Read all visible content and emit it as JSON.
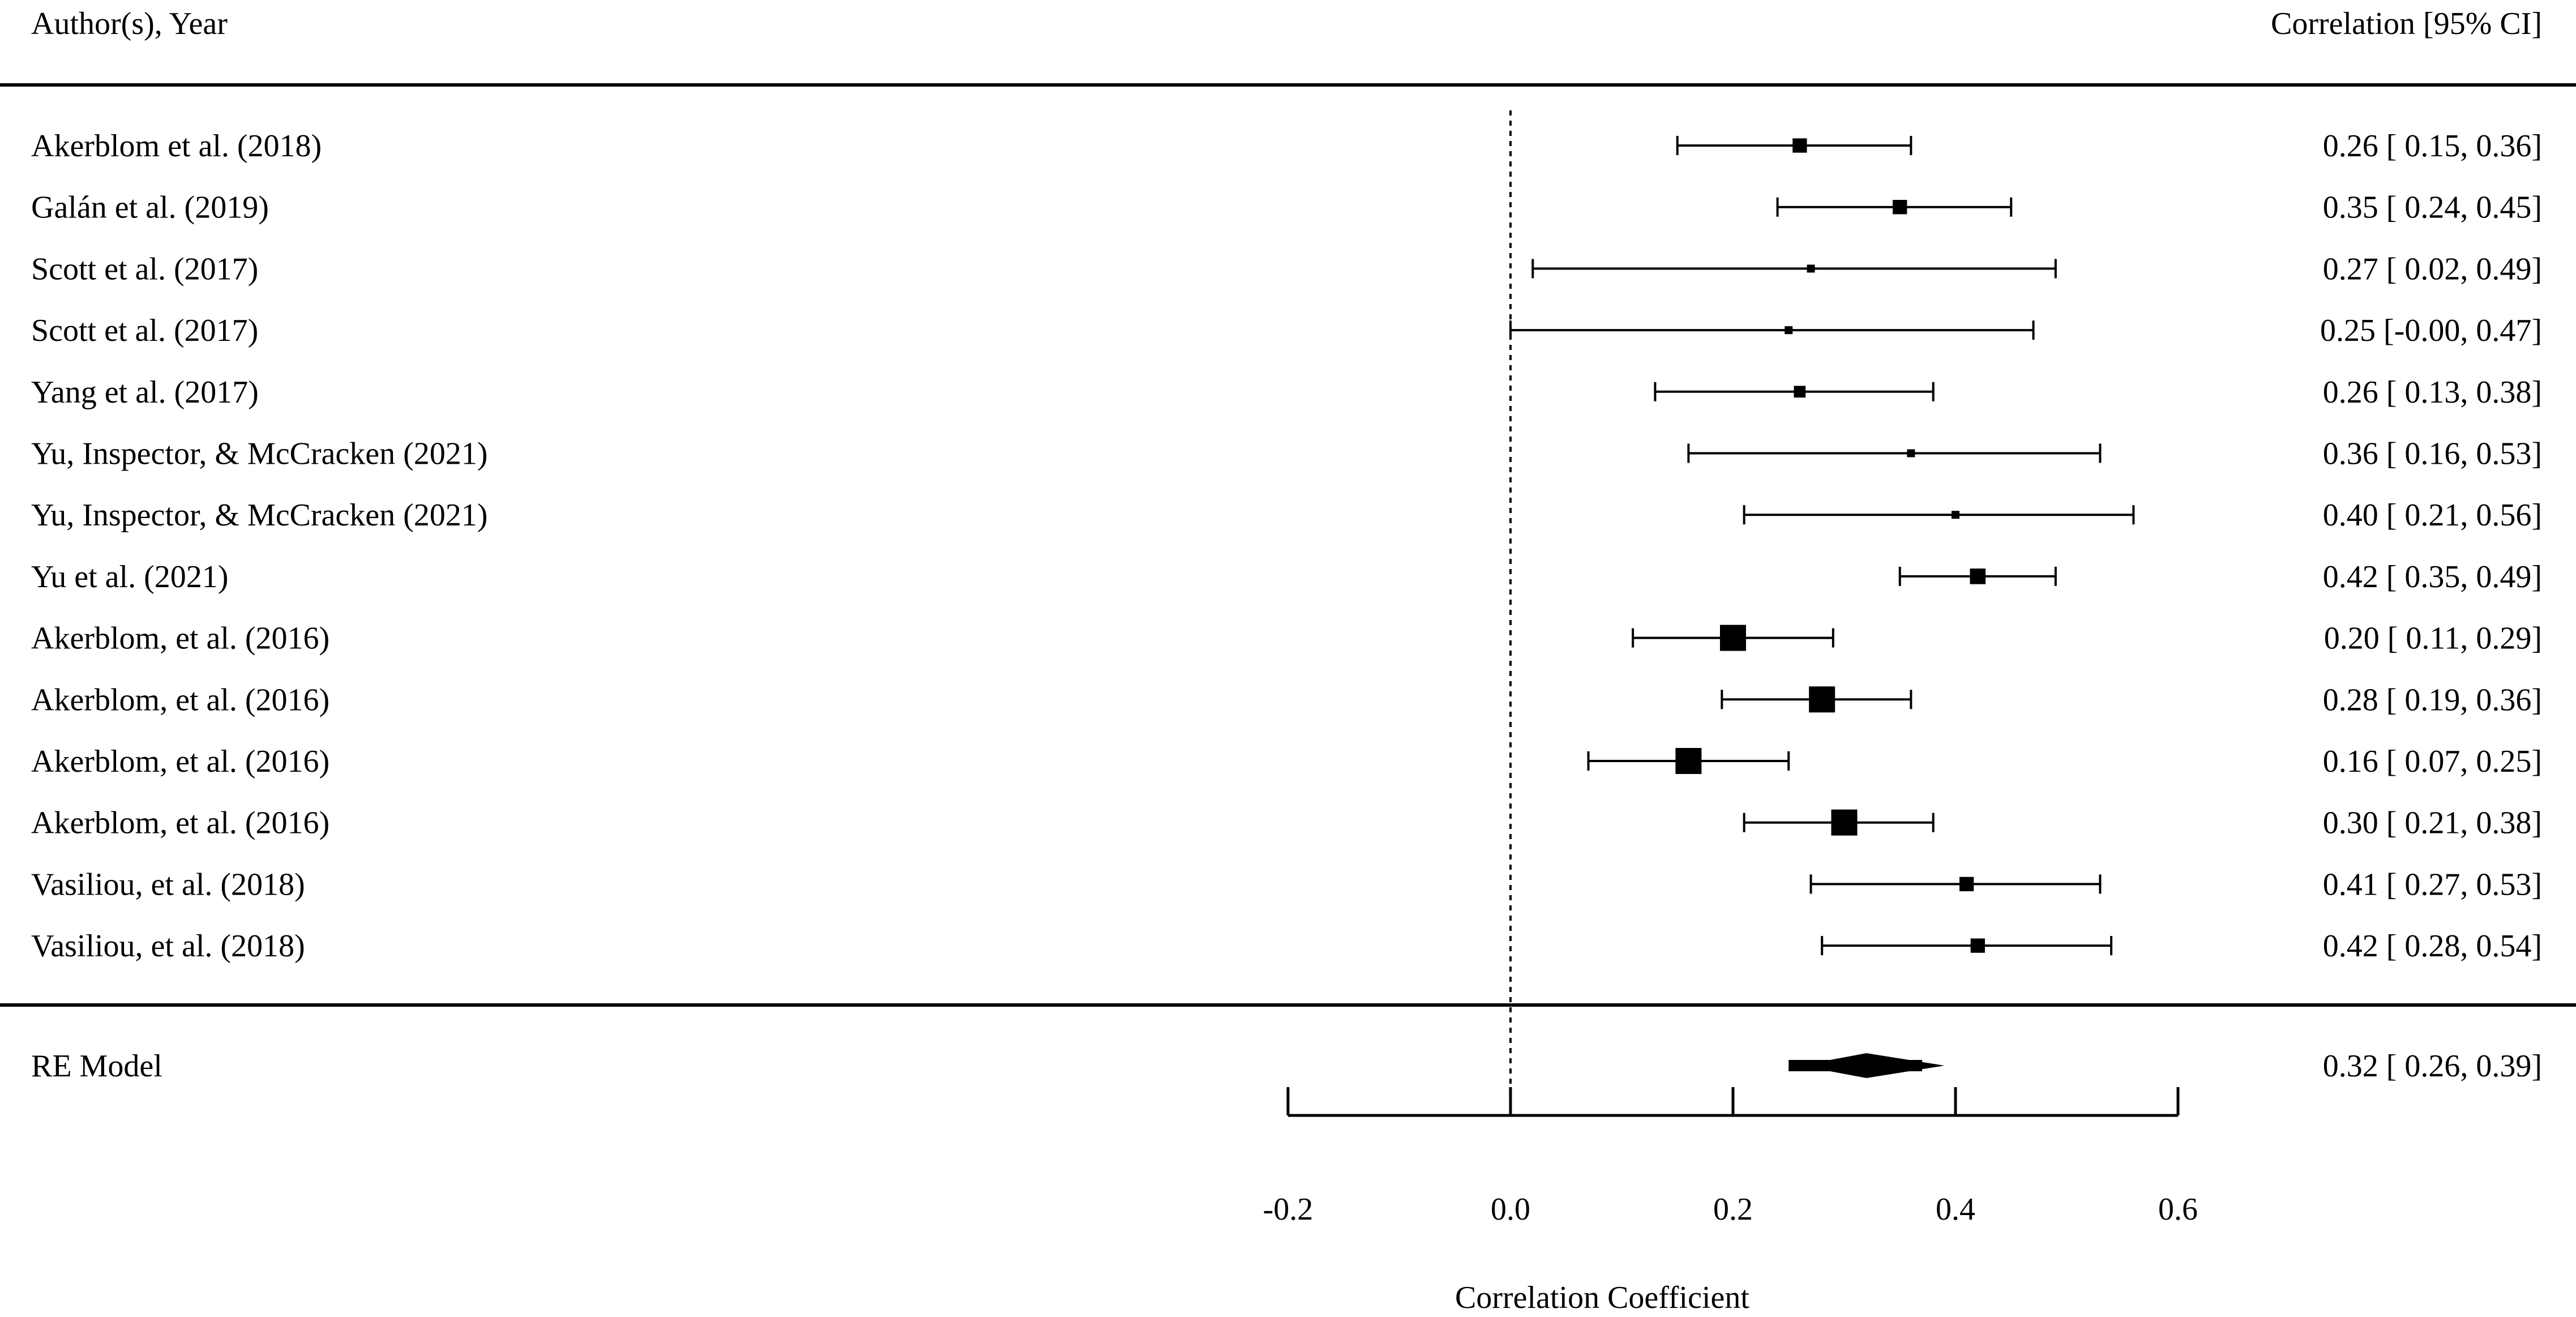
{
  "chart_data": {
    "type": "forest",
    "title": "",
    "left_header": "Author(s), Year",
    "right_header": "Correlation [95% CI]",
    "xlabel": "Correlation Coefficient",
    "xlim": [
      -0.2,
      0.6
    ],
    "xticks": [
      -0.2,
      0.0,
      0.2,
      0.4,
      0.6
    ],
    "xtick_labels": [
      "-0.2",
      "0.0",
      "0.2",
      "0.4",
      "0.6"
    ],
    "reference_line": 0.0,
    "studies": [
      {
        "label": "Akerblom et al. (2018)",
        "estimate": 0.26,
        "ci": [
          0.15,
          0.36
        ],
        "text": "0.26 [ 0.15, 0.36]",
        "weight": 0.55
      },
      {
        "label": "Galán et al. (2019)",
        "estimate": 0.35,
        "ci": [
          0.24,
          0.45
        ],
        "text": "0.35 [ 0.24, 0.45]",
        "weight": 0.55
      },
      {
        "label": "Scott et al. (2017)",
        "estimate": 0.27,
        "ci": [
          0.02,
          0.49
        ],
        "text": "0.27 [ 0.02, 0.49]",
        "weight": 0.25
      },
      {
        "label": "Scott et al. (2017)",
        "estimate": 0.25,
        "ci": [
          -0.0,
          0.47
        ],
        "text": "0.25 [-0.00, 0.47]",
        "weight": 0.25
      },
      {
        "label": "Yang et al. (2017)",
        "estimate": 0.26,
        "ci": [
          0.13,
          0.38
        ],
        "text": "0.26 [ 0.13, 0.38]",
        "weight": 0.45
      },
      {
        "label": "Yu, Inspector, & McCracken (2021)",
        "estimate": 0.36,
        "ci": [
          0.16,
          0.53
        ],
        "text": "0.36 [ 0.16, 0.53]",
        "weight": 0.3
      },
      {
        "label": "Yu, Inspector, & McCracken (2021)",
        "estimate": 0.4,
        "ci": [
          0.21,
          0.56
        ],
        "text": "0.40 [ 0.21, 0.56]",
        "weight": 0.3
      },
      {
        "label": "Yu et al. (2021)",
        "estimate": 0.42,
        "ci": [
          0.35,
          0.49
        ],
        "text": "0.42 [ 0.35, 0.49]",
        "weight": 0.6
      },
      {
        "label": "Akerblom, et al. (2016)",
        "estimate": 0.2,
        "ci": [
          0.11,
          0.29
        ],
        "text": "0.20 [ 0.11, 0.29]",
        "weight": 1.0
      },
      {
        "label": "Akerblom, et al. (2016)",
        "estimate": 0.28,
        "ci": [
          0.19,
          0.36
        ],
        "text": "0.28 [ 0.19, 0.36]",
        "weight": 1.0
      },
      {
        "label": "Akerblom, et al. (2016)",
        "estimate": 0.16,
        "ci": [
          0.07,
          0.25
        ],
        "text": "0.16 [ 0.07, 0.25]",
        "weight": 1.0
      },
      {
        "label": "Akerblom, et al. (2016)",
        "estimate": 0.3,
        "ci": [
          0.21,
          0.38
        ],
        "text": "0.30 [ 0.21, 0.38]",
        "weight": 1.0
      },
      {
        "label": "Vasiliou, et al. (2018)",
        "estimate": 0.41,
        "ci": [
          0.27,
          0.53
        ],
        "text": "0.41 [ 0.27, 0.53]",
        "weight": 0.55
      },
      {
        "label": "Vasiliou, et al. (2018)",
        "estimate": 0.42,
        "ci": [
          0.28,
          0.54
        ],
        "text": "0.42 [ 0.28, 0.54]",
        "weight": 0.55
      }
    ],
    "summary": {
      "label": "RE Model",
      "estimate": 0.32,
      "ci": [
        0.26,
        0.39
      ],
      "pi": [
        0.25,
        0.37
      ],
      "text": "0.32 [ 0.26, 0.39]"
    }
  }
}
